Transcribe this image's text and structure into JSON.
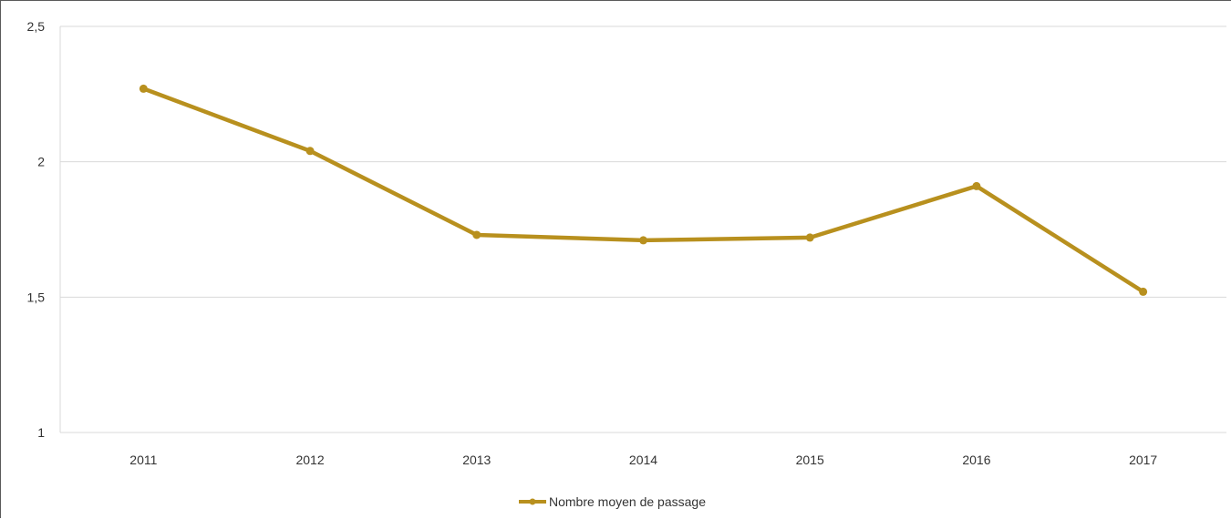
{
  "chart_data": {
    "type": "line",
    "title": "",
    "xlabel": "",
    "ylabel": "",
    "categories": [
      "2011",
      "2012",
      "2013",
      "2014",
      "2015",
      "2016",
      "2017"
    ],
    "series": [
      {
        "name": "Nombre moyen de passage",
        "values": [
          2.27,
          2.04,
          1.73,
          1.71,
          1.72,
          1.91,
          1.52
        ],
        "color": "#b8901e"
      }
    ],
    "ylim": [
      1,
      2.5
    ],
    "yticks": [
      1,
      1.5,
      2,
      2.5
    ],
    "ytick_labels": [
      "1",
      "1,5",
      "2",
      "2,5"
    ],
    "grid": true,
    "legend_position": "bottom"
  }
}
